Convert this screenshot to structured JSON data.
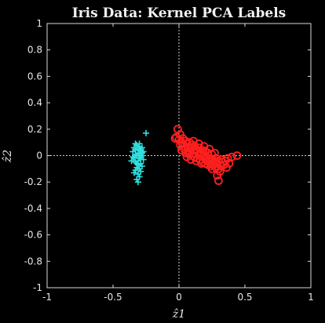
{
  "chart_data": {
    "type": "scatter",
    "title": "Iris Data: Kernel PCA Labels",
    "xlabel": "ẑ1",
    "ylabel": "ẑ2",
    "xlim": [
      -1,
      1
    ],
    "ylim": [
      -1,
      1
    ],
    "x_ticks": [
      -1,
      -0.5,
      0,
      0.5,
      1
    ],
    "x_tick_labels": [
      "-1",
      "-0.5",
      "0",
      "0.5",
      "1"
    ],
    "y_ticks": [
      1,
      0.8,
      0.6,
      0.4,
      0.2,
      0,
      -0.2,
      -0.4,
      -0.6,
      -0.8,
      -1
    ],
    "y_tick_labels": [
      "1",
      "0.8",
      "0.6",
      "0.4",
      "0.2",
      "0",
      "-0.2",
      "-0.4",
      "-0.6",
      "-0.8",
      "-1"
    ],
    "grid": false,
    "zero_lines": true,
    "series": [
      {
        "marker": "plus",
        "color": "#33e0e0",
        "points": [
          [
            -0.32,
            0.08
          ],
          [
            -0.3,
            0.07
          ],
          [
            -0.34,
            0.06
          ],
          [
            -0.28,
            0.06
          ],
          [
            -0.31,
            0.05
          ],
          [
            -0.33,
            0.04
          ],
          [
            -0.29,
            0.04
          ],
          [
            -0.27,
            0.03
          ],
          [
            -0.35,
            0.03
          ],
          [
            -0.31,
            0.02
          ],
          [
            -0.3,
            0.01
          ],
          [
            -0.33,
            0.01
          ],
          [
            -0.28,
            0.0
          ],
          [
            -0.32,
            0.0
          ],
          [
            -0.29,
            -0.01
          ],
          [
            -0.34,
            -0.02
          ],
          [
            -0.3,
            -0.02
          ],
          [
            -0.27,
            -0.03
          ],
          [
            -0.31,
            -0.04
          ],
          [
            -0.36,
            -0.04
          ],
          [
            -0.33,
            -0.05
          ],
          [
            -0.29,
            -0.06
          ],
          [
            -0.31,
            -0.07
          ],
          [
            -0.28,
            -0.08
          ],
          [
            -0.32,
            -0.09
          ],
          [
            -0.3,
            -0.1
          ],
          [
            -0.33,
            -0.11
          ],
          [
            -0.29,
            -0.12
          ],
          [
            -0.31,
            -0.14
          ],
          [
            -0.34,
            -0.13
          ],
          [
            -0.3,
            -0.16
          ],
          [
            -0.32,
            -0.18
          ],
          [
            -0.31,
            -0.2
          ],
          [
            -0.25,
            0.17
          ],
          [
            -0.3,
            0.09
          ],
          [
            -0.33,
            0.09
          ],
          [
            -0.28,
            0.02
          ],
          [
            -0.35,
            -0.01
          ],
          [
            -0.3,
            0.05
          ],
          [
            -0.32,
            -0.06
          ]
        ]
      },
      {
        "marker": "circle",
        "color": "#ff1f1f",
        "points": [
          [
            -0.02,
            0.14
          ],
          [
            0.0,
            0.12
          ],
          [
            -0.01,
            0.2
          ],
          [
            0.02,
            0.1
          ],
          [
            0.03,
            0.13
          ],
          [
            0.05,
            0.11
          ],
          [
            0.01,
            0.08
          ],
          [
            0.04,
            0.07
          ],
          [
            0.06,
            0.09
          ],
          [
            0.08,
            0.1
          ],
          [
            0.07,
            0.06
          ],
          [
            0.09,
            0.05
          ],
          [
            0.1,
            0.08
          ],
          [
            0.12,
            0.07
          ],
          [
            0.11,
            0.04
          ],
          [
            0.13,
            0.05
          ],
          [
            0.15,
            0.06
          ],
          [
            0.14,
            0.03
          ],
          [
            0.16,
            0.02
          ],
          [
            0.18,
            0.04
          ],
          [
            0.17,
            0.01
          ],
          [
            0.19,
            0.0
          ],
          [
            0.2,
            0.03
          ],
          [
            0.22,
            0.02
          ],
          [
            0.21,
            -0.01
          ],
          [
            0.23,
            -0.02
          ],
          [
            0.25,
            0.01
          ],
          [
            0.24,
            -0.03
          ],
          [
            0.26,
            -0.04
          ],
          [
            0.28,
            -0.02
          ],
          [
            0.27,
            -0.05
          ],
          [
            0.29,
            -0.06
          ],
          [
            0.3,
            -0.04
          ],
          [
            0.32,
            -0.03
          ],
          [
            0.33,
            -0.05
          ],
          [
            0.35,
            -0.04
          ],
          [
            0.37,
            -0.02
          ],
          [
            0.4,
            -0.01
          ],
          [
            0.44,
            0.0
          ],
          [
            0.38,
            -0.06
          ],
          [
            0.05,
            0.02
          ],
          [
            0.08,
            0.01
          ],
          [
            0.1,
            0.0
          ],
          [
            0.12,
            -0.01
          ],
          [
            0.14,
            -0.02
          ],
          [
            0.16,
            -0.03
          ],
          [
            0.18,
            -0.05
          ],
          [
            0.2,
            -0.06
          ],
          [
            0.22,
            -0.07
          ],
          [
            0.24,
            -0.08
          ],
          [
            0.26,
            -0.07
          ],
          [
            0.28,
            -0.09
          ],
          [
            0.3,
            -0.1
          ],
          [
            0.31,
            -0.12
          ],
          [
            0.29,
            -0.15
          ],
          [
            0.3,
            -0.19
          ],
          [
            0.02,
            0.04
          ],
          [
            0.06,
            -0.01
          ],
          [
            0.09,
            -0.03
          ],
          [
            0.15,
            0.09
          ],
          [
            0.19,
            0.07
          ],
          [
            0.23,
            0.05
          ],
          [
            0.27,
            0.02
          ],
          [
            0.34,
            -0.07
          ],
          [
            0.36,
            -0.09
          ],
          [
            0.11,
            0.11
          ],
          [
            0.07,
            0.03
          ],
          [
            0.13,
            -0.04
          ],
          [
            0.17,
            -0.06
          ],
          [
            0.21,
            -0.04
          ],
          [
            0.25,
            -0.1
          ],
          [
            0.32,
            -0.08
          ],
          [
            0.04,
            0.05
          ],
          [
            -0.03,
            0.13
          ],
          [
            0.01,
            0.16
          ],
          [
            0.03,
            0.09
          ],
          [
            0.1,
            0.06
          ],
          [
            0.16,
            0.0
          ],
          [
            0.2,
            -0.02
          ],
          [
            0.24,
            -0.05
          ]
        ]
      }
    ]
  }
}
